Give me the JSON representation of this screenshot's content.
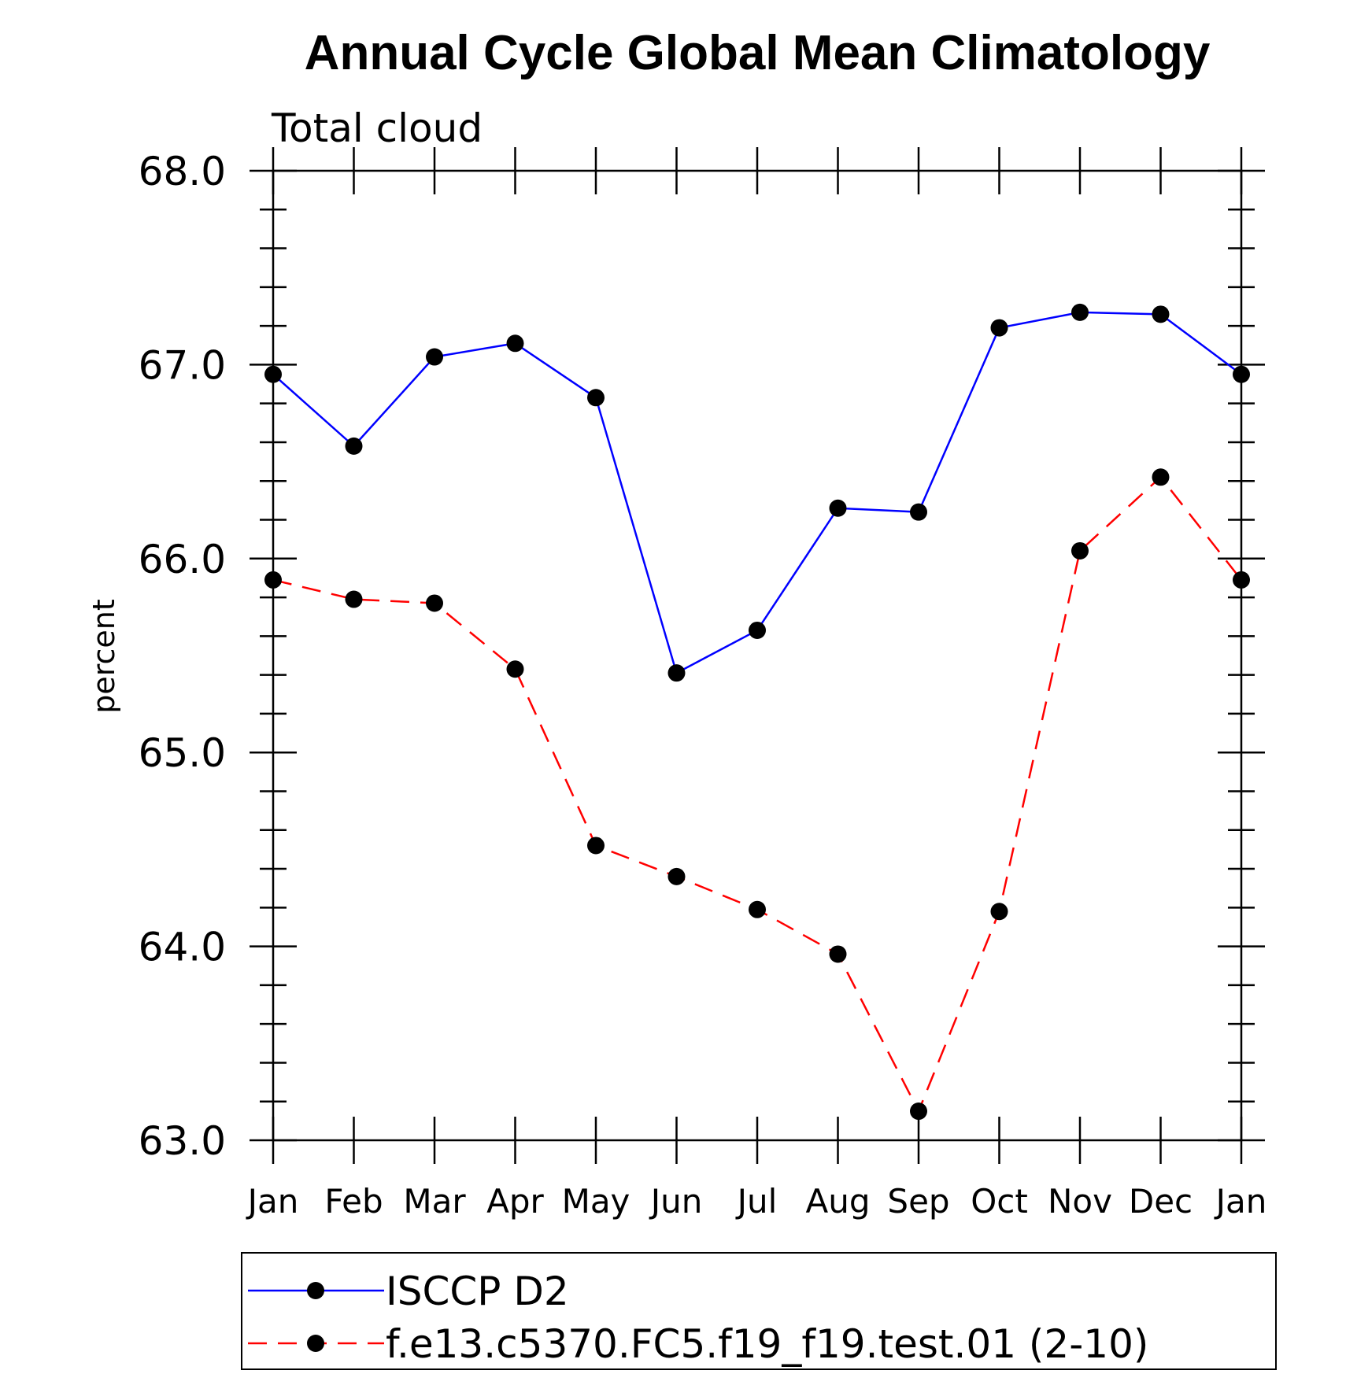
{
  "chart_data": {
    "type": "line",
    "title": "Annual Cycle Global Mean Climatology",
    "subtitle": "Total cloud",
    "xlabel": "",
    "ylabel": "percent",
    "categories": [
      "Jan",
      "Feb",
      "Mar",
      "Apr",
      "May",
      "Jun",
      "Jul",
      "Aug",
      "Sep",
      "Oct",
      "Nov",
      "Dec",
      "Jan"
    ],
    "ylim": [
      63.0,
      68.0
    ],
    "y_ticks": [
      "63.0",
      "64.0",
      "65.0",
      "66.0",
      "67.0",
      "68.0"
    ],
    "grid": false,
    "legend_position": "bottom",
    "series": [
      {
        "name": "ISCCP D2",
        "color": "#0000ff",
        "line_style": "solid",
        "marker": "filled-circle",
        "values": [
          66.95,
          66.58,
          67.04,
          67.11,
          66.83,
          65.41,
          65.63,
          66.26,
          66.24,
          67.19,
          67.27,
          67.26,
          66.95
        ]
      },
      {
        "name": "f.e13.c5370.FC5.f19_f19.test.01 (2-10)",
        "color": "#ff0000",
        "line_style": "dashed",
        "marker": "filled-circle",
        "values": [
          65.89,
          65.79,
          65.77,
          65.43,
          64.52,
          64.36,
          64.19,
          63.96,
          63.15,
          64.18,
          66.04,
          66.42,
          65.89
        ]
      }
    ]
  }
}
